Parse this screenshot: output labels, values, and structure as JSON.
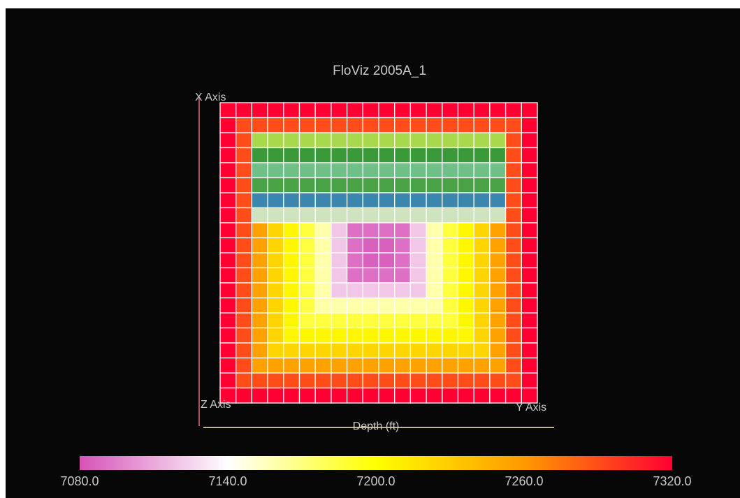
{
  "title": "FloViz 2005A_1",
  "axes": {
    "x_label": "X Axis",
    "y_label": "Y Axis",
    "z_label": "Z Axis",
    "depth_label": "Depth (ft)"
  },
  "colorbar": {
    "colors": [
      "#d653b8",
      "#ffffff",
      "#ffff00",
      "#ff9900",
      "#ff0033"
    ],
    "ticks": [
      "7080.0",
      "7140.0",
      "7200.0",
      "7260.0",
      "7320.0"
    ]
  },
  "chart_data": {
    "type": "heatmap",
    "title": "FloViz 2005A_1",
    "xlabel": "Depth (ft)",
    "value_range": [
      7080.0,
      7320.0
    ],
    "grid": "20 x 20 cells",
    "description_of_field": "concentric rings",
    "ring_values": [
      7320,
      7290,
      7255,
      7225,
      7205,
      7185,
      7160,
      7120,
      7090,
      7085
    ],
    "bands": [
      {
        "row": 2,
        "color": "#a8d94c"
      },
      {
        "row": 3,
        "color": "#3a9a3a"
      },
      {
        "row": 4,
        "color": "#6fbf86"
      },
      {
        "row": 5,
        "color": "#4aa247"
      },
      {
        "row": 6,
        "color": "#3b86ad"
      },
      {
        "row": 7,
        "color": "#cfe3bf"
      }
    ]
  }
}
